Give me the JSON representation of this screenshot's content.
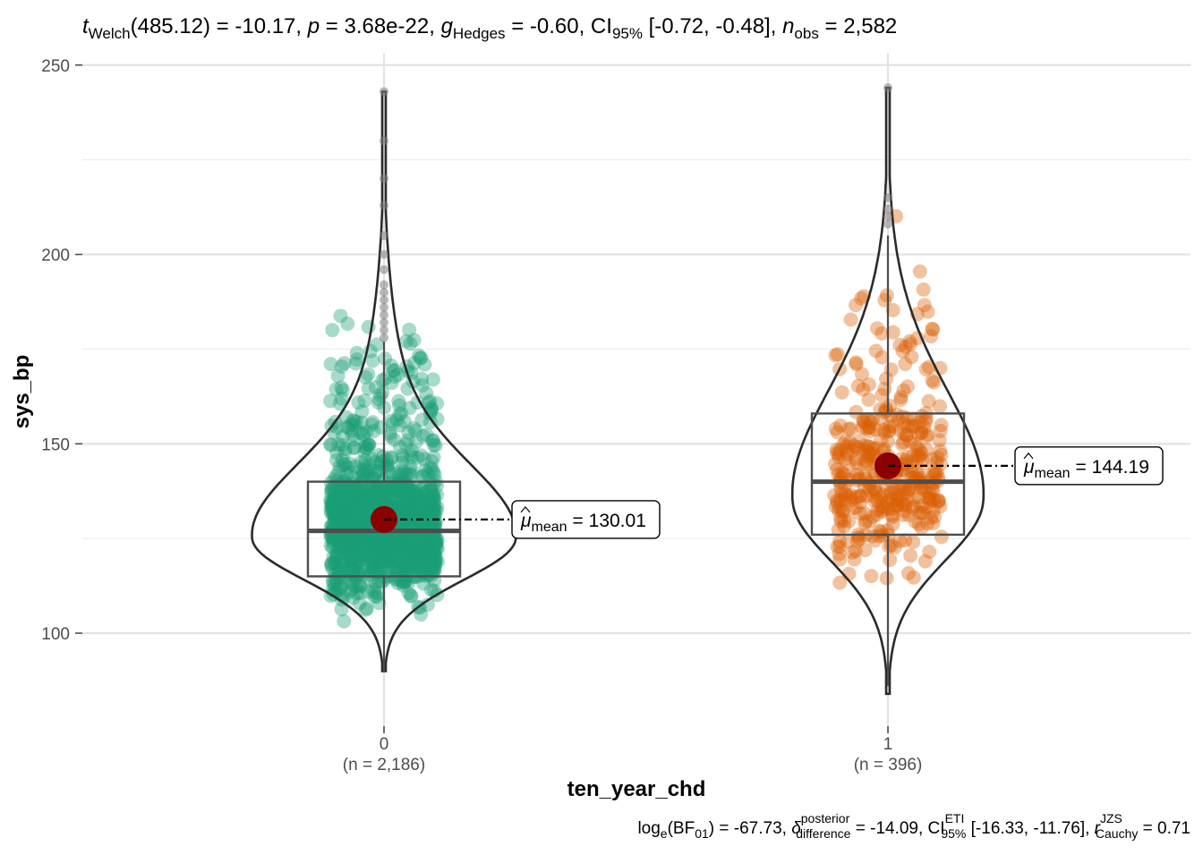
{
  "chart_data": {
    "type": "violin-box-scatter",
    "title": {
      "stat": "t",
      "stat_sub": "Welch",
      "df_value": "(485.12) = -10.17,",
      "p_symbol": "p",
      "p_value": "= 3.68e-22,",
      "effect_symbol": "g",
      "effect_sub": "Hedges",
      "effect_value": "= -0.60, CI",
      "ci_sub": "95%",
      "ci_value": "[-0.72, -0.48],",
      "n_symbol": "n",
      "n_sub": "obs",
      "n_value": "= 2,582"
    },
    "caption": {
      "part1": "log",
      "part1_sub": "e",
      "part2": "(BF",
      "part2_sub": "01",
      "part3": ") = -67.73,",
      "delta_symbol": "δ",
      "delta_sup": "posterior",
      "delta_sub": "difference",
      "part4": "= -14.09, CI",
      "ci_sup": "ETI",
      "ci_sub": "95%",
      "part5": "[-16.33, -11.76],",
      "r_symbol": "r",
      "r_sup": "JZS",
      "r_sub": "Cauchy",
      "part6": "= 0.71"
    },
    "xlabel": "ten_year_chd",
    "ylabel": "sys_bp",
    "ylim": [
      80,
      252
    ],
    "y_ticks": [
      100,
      150,
      200,
      250
    ],
    "grid": true,
    "groups": [
      {
        "category": "0",
        "n_label": "(n = 2,186)",
        "color": "#1b9e77",
        "mean": 130.01,
        "mean_label_symbol": "μ",
        "mean_label_sub": "mean",
        "mean_label_value": "= 130.01",
        "box": {
          "q1": 115,
          "median": 127,
          "q3": 140,
          "whisker_low": 90,
          "whisker_high": 177
        },
        "violin_range": [
          90,
          243
        ],
        "violin_peak": 125,
        "outliers": [
          243,
          230,
          220,
          213,
          205,
          200,
          196,
          192,
          190,
          188,
          186,
          184,
          182,
          180,
          178
        ],
        "points_range": [
          90,
          243
        ]
      },
      {
        "category": "1",
        "n_label": "(n = 396)",
        "color": "#d95f02",
        "mean": 144.19,
        "mean_label_symbol": "μ",
        "mean_label_sub": "mean",
        "mean_label_value": "= 144.19",
        "box": {
          "q1": 126,
          "median": 140,
          "q3": 158,
          "whisker_low": 86,
          "whisker_high": 205
        },
        "violin_range": [
          84,
          244
        ],
        "violin_peak": 135,
        "outliers": [
          244,
          215,
          212,
          210,
          208
        ],
        "points_range": [
          84,
          244
        ]
      }
    ]
  }
}
